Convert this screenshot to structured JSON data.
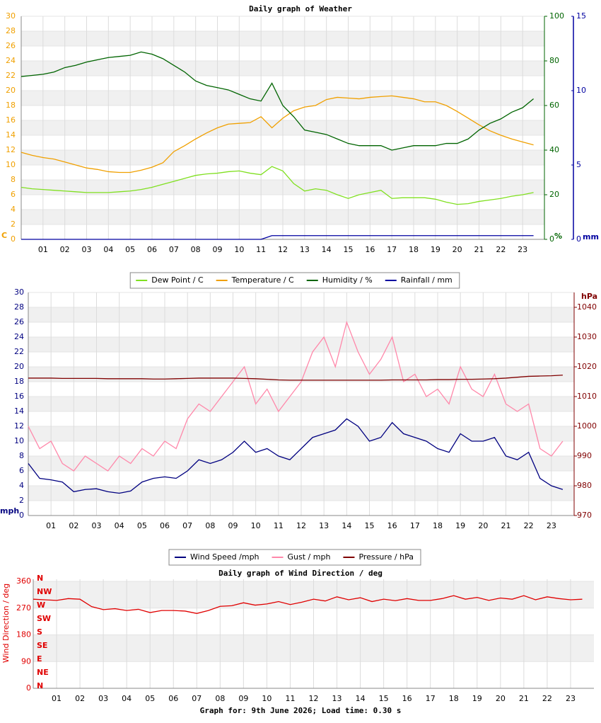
{
  "chart_data": [
    {
      "type": "line",
      "title": "Daily graph of Weather",
      "x": [
        0,
        0.5,
        1,
        1.5,
        2,
        2.5,
        3,
        3.5,
        4,
        4.5,
        5,
        5.5,
        6,
        6.5,
        7,
        7.5,
        8,
        8.5,
        9,
        9.5,
        10,
        10.5,
        11,
        11.5,
        12,
        12.5,
        13,
        13.5,
        14,
        14.5,
        15,
        15.5,
        16,
        16.5,
        17,
        17.5,
        18,
        18.5,
        19,
        19.5,
        20,
        20.5,
        21,
        21.5,
        22,
        22.5,
        23,
        23.5
      ],
      "xlim": [
        0,
        24
      ],
      "xticks": [
        {
          "value": 1,
          "label": "01"
        },
        {
          "value": 2,
          "label": "02"
        },
        {
          "value": 3,
          "label": "03"
        },
        {
          "value": 4,
          "label": "04"
        },
        {
          "value": 5,
          "label": "05"
        },
        {
          "value": 6,
          "label": "06"
        },
        {
          "value": 7,
          "label": "07"
        },
        {
          "value": 8,
          "label": "08"
        },
        {
          "value": 9,
          "label": "09"
        },
        {
          "value": 10,
          "label": "10"
        },
        {
          "value": 11,
          "label": "11"
        },
        {
          "value": 12,
          "label": "12"
        },
        {
          "value": 13,
          "label": "13"
        },
        {
          "value": 14,
          "label": "14"
        },
        {
          "value": 15,
          "label": "15"
        },
        {
          "value": 16,
          "label": "16"
        },
        {
          "value": 17,
          "label": "17"
        },
        {
          "value": 18,
          "label": "18"
        },
        {
          "value": 19,
          "label": "19"
        },
        {
          "value": 20,
          "label": "20"
        },
        {
          "value": 21,
          "label": "21"
        },
        {
          "value": 22,
          "label": "22"
        },
        {
          "value": 23,
          "label": "23"
        }
      ],
      "ylim": [
        0,
        30
      ],
      "yticks": [
        0,
        2,
        4,
        6,
        8,
        10,
        12,
        14,
        16,
        18,
        20,
        22,
        24,
        26,
        28,
        30
      ],
      "ylabel": "C",
      "ycolor": "#f0a000",
      "y2lim": [
        0,
        100
      ],
      "y2ticks": [
        0,
        20,
        40,
        60,
        80,
        100
      ],
      "y2label": "%",
      "y2color": "#006400",
      "y3lim": [
        0,
        15
      ],
      "y3ticks": [
        0,
        5,
        10,
        15
      ],
      "y3label": "mm",
      "y3color": "#0000a0",
      "grid": true,
      "legend": "bottom",
      "series": [
        {
          "name": "Dew Point / C",
          "color": "#80e020",
          "axis": "y",
          "values": [
            7.0,
            6.8,
            6.7,
            6.6,
            6.5,
            6.4,
            6.3,
            6.3,
            6.3,
            6.4,
            6.5,
            6.7,
            7.0,
            7.4,
            7.8,
            8.2,
            8.6,
            8.8,
            8.9,
            9.1,
            9.2,
            8.9,
            8.7,
            9.8,
            9.2,
            7.5,
            6.5,
            6.8,
            6.6,
            6.0,
            5.5,
            6.0,
            6.3,
            6.6,
            5.5,
            5.6,
            5.6,
            5.6,
            5.4,
            5.0,
            4.7,
            4.8,
            5.1,
            5.3,
            5.5,
            5.8,
            6.0,
            6.3
          ]
        },
        {
          "name": "Temperature / C",
          "color": "#f0a000",
          "axis": "y",
          "values": [
            11.7,
            11.3,
            11.0,
            10.8,
            10.4,
            10.0,
            9.6,
            9.4,
            9.1,
            9.0,
            9.0,
            9.3,
            9.7,
            10.3,
            11.8,
            12.6,
            13.5,
            14.3,
            15.0,
            15.5,
            15.6,
            15.7,
            16.5,
            15.0,
            16.3,
            17.3,
            17.8,
            18.0,
            18.8,
            19.1,
            19.0,
            18.9,
            19.1,
            19.2,
            19.3,
            19.1,
            18.9,
            18.5,
            18.5,
            18.0,
            17.2,
            16.3,
            15.4,
            14.6,
            14.0,
            13.5,
            13.1,
            12.7
          ]
        },
        {
          "name": "Humidity / %",
          "color": "#006400",
          "axis": "y2",
          "values": [
            73,
            73.5,
            74,
            75,
            77,
            78,
            79.5,
            80.5,
            81.5,
            82,
            82.5,
            84,
            83,
            81,
            78,
            75,
            71,
            69,
            68,
            67,
            65,
            63,
            62,
            70,
            60,
            55,
            49,
            48,
            47,
            45,
            43,
            42,
            42,
            42,
            40,
            41,
            42,
            42,
            42,
            43,
            43,
            45,
            49,
            52,
            54,
            57,
            59,
            63
          ]
        },
        {
          "name": "Rainfall / mm",
          "color": "#0000a0",
          "axis": "y3",
          "values": [
            0,
            0,
            0,
            0,
            0,
            0,
            0,
            0,
            0,
            0,
            0,
            0,
            0,
            0,
            0,
            0,
            0,
            0,
            0,
            0,
            0,
            0,
            0,
            0.25,
            0.25,
            0.25,
            0.25,
            0.25,
            0.25,
            0.25,
            0.25,
            0.25,
            0.25,
            0.25,
            0.25,
            0.25,
            0.25,
            0.25,
            0.25,
            0.25,
            0.25,
            0.25,
            0.25,
            0.25,
            0.25,
            0.25,
            0.25,
            0.25
          ]
        }
      ]
    },
    {
      "type": "line",
      "x": [
        0,
        0.5,
        1,
        1.5,
        2,
        2.5,
        3,
        3.5,
        4,
        4.5,
        5,
        5.5,
        6,
        6.5,
        7,
        7.5,
        8,
        8.5,
        9,
        9.5,
        10,
        10.5,
        11,
        11.5,
        12,
        12.5,
        13,
        13.5,
        14,
        14.5,
        15,
        15.5,
        16,
        16.5,
        17,
        17.5,
        18,
        18.5,
        19,
        19.5,
        20,
        20.5,
        21,
        21.5,
        22,
        22.5,
        23,
        23.5
      ],
      "xlim": [
        0,
        24
      ],
      "xticks": [
        {
          "value": 1,
          "label": "01"
        },
        {
          "value": 2,
          "label": "02"
        },
        {
          "value": 3,
          "label": "03"
        },
        {
          "value": 4,
          "label": "04"
        },
        {
          "value": 5,
          "label": "05"
        },
        {
          "value": 6,
          "label": "06"
        },
        {
          "value": 7,
          "label": "07"
        },
        {
          "value": 8,
          "label": "08"
        },
        {
          "value": 9,
          "label": "09"
        },
        {
          "value": 10,
          "label": "10"
        },
        {
          "value": 11,
          "label": "11"
        },
        {
          "value": 12,
          "label": "12"
        },
        {
          "value": 13,
          "label": "13"
        },
        {
          "value": 14,
          "label": "14"
        },
        {
          "value": 15,
          "label": "15"
        },
        {
          "value": 16,
          "label": "16"
        },
        {
          "value": 17,
          "label": "17"
        },
        {
          "value": 18,
          "label": "18"
        },
        {
          "value": 19,
          "label": "19"
        },
        {
          "value": 20,
          "label": "20"
        },
        {
          "value": 21,
          "label": "21"
        },
        {
          "value": 22,
          "label": "22"
        },
        {
          "value": 23,
          "label": "23"
        }
      ],
      "ylim": [
        0,
        30
      ],
      "yticks": [
        0,
        2,
        4,
        6,
        8,
        10,
        12,
        14,
        16,
        18,
        20,
        22,
        24,
        26,
        28,
        30
      ],
      "ylabel": "mph",
      "ycolor": "#000080",
      "y2lim": [
        970,
        1045
      ],
      "y2ticks": [
        970,
        980,
        990,
        1000,
        1010,
        1020,
        1030,
        1040
      ],
      "y2label": "hPa",
      "y2color": "#800000",
      "grid": true,
      "legend": "bottom",
      "series": [
        {
          "name": "Wind Speed /mph",
          "color": "#000080",
          "axis": "y",
          "values": [
            7,
            5,
            4.8,
            4.5,
            3.2,
            3.5,
            3.6,
            3.2,
            3.0,
            3.3,
            4.5,
            5.0,
            5.2,
            5.0,
            6,
            7.5,
            7,
            7.5,
            8.5,
            10,
            8.5,
            9,
            8,
            7.5,
            9,
            10.5,
            11,
            11.5,
            13,
            12,
            10,
            10.5,
            12.5,
            11,
            10.5,
            10,
            9,
            8.5,
            11,
            10,
            10,
            10.5,
            8,
            7.5,
            8.5,
            5,
            4,
            3.5
          ]
        },
        {
          "name": "Gust / mph",
          "color": "#ff88aa",
          "axis": "y",
          "values": [
            12,
            9,
            10,
            7,
            6,
            8,
            7,
            6,
            8,
            7,
            9,
            8,
            10,
            9,
            13,
            15,
            14,
            16,
            18,
            20,
            15,
            17,
            14,
            16,
            18,
            22,
            24,
            20,
            26,
            22,
            19,
            21,
            24,
            18,
            19,
            16,
            17,
            15,
            20,
            17,
            16,
            19,
            15,
            14,
            15,
            9,
            8,
            10
          ]
        },
        {
          "name": "Pressure / hPa",
          "color": "#800000",
          "axis": "y2",
          "values": [
            1016.2,
            1016.2,
            1016.2,
            1016.1,
            1016.1,
            1016.1,
            1016.1,
            1016.0,
            1016.0,
            1016.0,
            1016.0,
            1015.9,
            1015.9,
            1016.0,
            1016.1,
            1016.2,
            1016.2,
            1016.2,
            1016.2,
            1016.1,
            1016.0,
            1015.8,
            1015.6,
            1015.5,
            1015.5,
            1015.5,
            1015.5,
            1015.5,
            1015.5,
            1015.5,
            1015.5,
            1015.5,
            1015.6,
            1015.6,
            1015.6,
            1015.6,
            1015.7,
            1015.7,
            1015.8,
            1015.8,
            1015.9,
            1016.0,
            1016.2,
            1016.5,
            1016.8,
            1016.9,
            1017.0,
            1017.2
          ]
        }
      ]
    },
    {
      "type": "line",
      "title": "Daily graph of Wind Direction / deg",
      "x": [
        0,
        0.5,
        1,
        1.5,
        2,
        2.5,
        3,
        3.5,
        4,
        4.5,
        5,
        5.5,
        6,
        6.5,
        7,
        7.5,
        8,
        8.5,
        9,
        9.5,
        10,
        10.5,
        11,
        11.5,
        12,
        12.5,
        13,
        13.5,
        14,
        14.5,
        15,
        15.5,
        16,
        16.5,
        17,
        17.5,
        18,
        18.5,
        19,
        19.5,
        20,
        20.5,
        21,
        21.5,
        22,
        22.5,
        23,
        23.5
      ],
      "xlim": [
        0,
        24
      ],
      "xticks": [
        {
          "value": 1,
          "label": "01"
        },
        {
          "value": 2,
          "label": "02"
        },
        {
          "value": 3,
          "label": "03"
        },
        {
          "value": 4,
          "label": "04"
        },
        {
          "value": 5,
          "label": "05"
        },
        {
          "value": 6,
          "label": "06"
        },
        {
          "value": 7,
          "label": "07"
        },
        {
          "value": 8,
          "label": "08"
        },
        {
          "value": 9,
          "label": "09"
        },
        {
          "value": 10,
          "label": "10"
        },
        {
          "value": 11,
          "label": "11"
        },
        {
          "value": 12,
          "label": "12"
        },
        {
          "value": 13,
          "label": "13"
        },
        {
          "value": 14,
          "label": "14"
        },
        {
          "value": 15,
          "label": "15"
        },
        {
          "value": 16,
          "label": "16"
        },
        {
          "value": 17,
          "label": "17"
        },
        {
          "value": 18,
          "label": "18"
        },
        {
          "value": 19,
          "label": "19"
        },
        {
          "value": 20,
          "label": "20"
        },
        {
          "value": 21,
          "label": "21"
        },
        {
          "value": 22,
          "label": "22"
        },
        {
          "value": 23,
          "label": "23"
        }
      ],
      "ylim": [
        0,
        360
      ],
      "yticks": [
        0,
        90,
        180,
        270,
        360
      ],
      "ylabel": "Wind Direction / deg",
      "ycolor": "#e00000",
      "compass_labels": [
        "N",
        "NW",
        "W",
        "SW",
        "S",
        "SE",
        "E",
        "NE",
        "N"
      ],
      "grid": true,
      "series": [
        {
          "name": "Wind Direction",
          "color": "#e00000",
          "axis": "y",
          "values": [
            300,
            298,
            296,
            302,
            300,
            275,
            265,
            268,
            262,
            266,
            255,
            262,
            262,
            260,
            252,
            262,
            276,
            278,
            288,
            280,
            284,
            292,
            282,
            290,
            300,
            294,
            308,
            298,
            305,
            292,
            300,
            295,
            302,
            296,
            296,
            302,
            312,
            300,
            306,
            296,
            304,
            300,
            312,
            298,
            308,
            302,
            298,
            300
          ]
        }
      ]
    }
  ],
  "footer": "Graph for: 9th June 2026; Load time: 0.30 s"
}
